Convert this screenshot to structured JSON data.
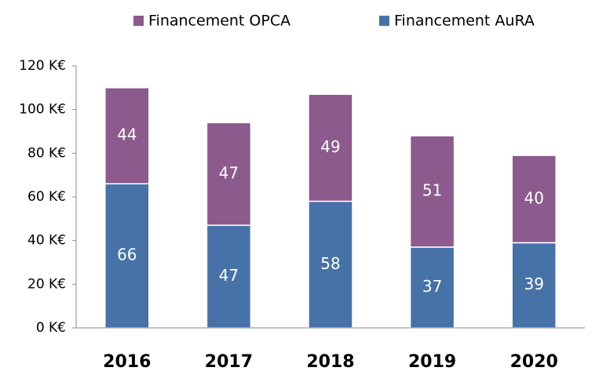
{
  "chart_data": {
    "type": "stacked_bar",
    "categories": [
      "2016",
      "2017",
      "2018",
      "2019",
      "2020"
    ],
    "series": [
      {
        "name": "Financement AuRA",
        "color": "#4672a8",
        "values": [
          66,
          47,
          58,
          37,
          39
        ]
      },
      {
        "name": "Financement OPCA",
        "color": "#8c5a8c",
        "values": [
          44,
          47,
          49,
          51,
          40
        ]
      }
    ],
    "ylim": [
      0,
      120
    ],
    "yticks": [
      {
        "value": 0,
        "label": "0 K€"
      },
      {
        "value": 20,
        "label": "20 K€"
      },
      {
        "value": 40,
        "label": "40 K€"
      },
      {
        "value": 60,
        "label": "60 K€"
      },
      {
        "value": 80,
        "label": "80 K€"
      },
      {
        "value": 100,
        "label": "100 K€"
      },
      {
        "value": 120,
        "label": "120 K€"
      }
    ],
    "legend": "top"
  }
}
